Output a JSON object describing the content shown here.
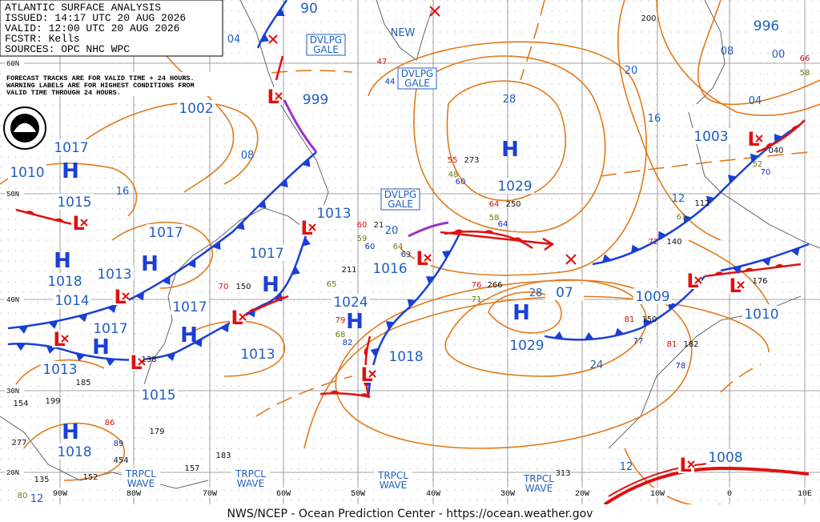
{
  "header": {
    "lines": [
      "ATLANTIC SURFACE ANALYSIS",
      "ISSUED: 14:17 UTC 20 AUG 2026",
      "VALID: 12:00 UTC 20 AUG 2026",
      "FCSTR: Kells",
      "SOURCES: OPC NHC WPC"
    ]
  },
  "note": {
    "lines": [
      "FORECAST TRACKS ARE FOR VALID TIME + 24 HOURS.",
      "WARNING LABELS ARE FOR HIGHEST CONDITIONS FROM",
      "VALID TIME THROUGH 24 HOURS."
    ]
  },
  "footer": "NWS/NCEP - Ocean Prediction Center - https://ocean.weather.gov",
  "pressure_labels": [
    "90",
    "996",
    "999",
    "1002",
    "1017",
    "1010",
    "1029",
    "1015",
    "1013",
    "1017",
    "1017",
    "1016",
    "1018",
    "1013",
    "1003",
    "1014",
    "1024",
    "1017",
    "1009",
    "1010",
    "1017",
    "1029",
    "1013",
    "1018",
    "1013",
    "1015",
    "1018",
    "1008",
    "07"
  ],
  "isobar_labels": [
    "04",
    "08",
    "00",
    "20",
    "28",
    "04",
    "16",
    "08",
    "16",
    "12",
    "20",
    "28",
    "24",
    "12",
    "12",
    "NEW"
  ],
  "highs": [
    "H",
    "H",
    "H",
    "H",
    "H",
    "H",
    "H",
    "H",
    "H",
    "H"
  ],
  "lows": [
    "L",
    "L",
    "L",
    "L",
    "L",
    "L",
    "L",
    "L",
    "L",
    "L",
    "L",
    "L",
    "L"
  ],
  "warnings": [
    [
      "DVLPG",
      "GALE"
    ],
    [
      "DVLPG",
      "GALE"
    ],
    [
      "DVLPG",
      "GALE"
    ],
    [
      "TRPCL",
      "WAVE"
    ],
    [
      "TRPCL",
      "WAVE"
    ],
    [
      "TRPCL",
      "WAVE"
    ],
    [
      "TRPCL",
      "WAVE"
    ]
  ],
  "lat_labels": [
    "60N",
    "50N",
    "40N",
    "30N",
    "20N"
  ],
  "lon_labels": [
    "90W",
    "80W",
    "70W",
    "60W",
    "50W",
    "40W",
    "30W",
    "20W",
    "10W",
    "0",
    "10E"
  ],
  "stations": [
    {
      "text": "200",
      "color": "#111"
    },
    {
      "text": "47",
      "color": "#d01010"
    },
    {
      "text": "44",
      "color": "#1030c0"
    },
    {
      "text": "55",
      "color": "#d01010"
    },
    {
      "text": "273",
      "color": "#111"
    },
    {
      "text": "48",
      "color": "#6a7a10"
    },
    {
      "text": "60",
      "color": "#1030c0"
    },
    {
      "text": "64",
      "color": "#d01010"
    },
    {
      "text": "250",
      "color": "#111"
    },
    {
      "text": "58",
      "color": "#6a7a10"
    },
    {
      "text": "64",
      "color": "#1030c0"
    },
    {
      "text": "60",
      "color": "#d01010"
    },
    {
      "text": "21",
      "color": "#111"
    },
    {
      "text": "59",
      "color": "#6a7a10"
    },
    {
      "text": "60",
      "color": "#1030c0"
    },
    {
      "text": "64",
      "color": "#6a7a10"
    },
    {
      "text": "63",
      "color": "#1030c0"
    },
    {
      "text": "211",
      "color": "#111"
    },
    {
      "text": "65",
      "color": "#6a7a10"
    },
    {
      "text": "76",
      "color": "#d01010"
    },
    {
      "text": "266",
      "color": "#111"
    },
    {
      "text": "71",
      "color": "#6a7a10"
    },
    {
      "text": "79",
      "color": "#d01010"
    },
    {
      "text": "68",
      "color": "#6a7a10"
    },
    {
      "text": "82",
      "color": "#1030c0"
    },
    {
      "text": "70",
      "color": "#d01010"
    },
    {
      "text": "150",
      "color": "#111"
    },
    {
      "text": "112",
      "color": "#111"
    },
    {
      "text": "61",
      "color": "#6a7a10"
    },
    {
      "text": "72",
      "color": "#d01010"
    },
    {
      "text": "140",
      "color": "#111"
    },
    {
      "text": "81",
      "color": "#d01010"
    },
    {
      "text": "150",
      "color": "#111"
    },
    {
      "text": "77",
      "color": "#1030c0"
    },
    {
      "text": "81",
      "color": "#d01010"
    },
    {
      "text": "182",
      "color": "#111"
    },
    {
      "text": "78",
      "color": "#1030c0"
    },
    {
      "text": "176",
      "color": "#111"
    },
    {
      "text": "040",
      "color": "#111"
    },
    {
      "text": "52",
      "color": "#6a7a10"
    },
    {
      "text": "70",
      "color": "#1030c0"
    },
    {
      "text": "66",
      "color": "#d01010"
    },
    {
      "text": "58",
      "color": "#6a7a10"
    },
    {
      "text": "185",
      "color": "#111"
    },
    {
      "text": "154",
      "color": "#111"
    },
    {
      "text": "199",
      "color": "#111"
    },
    {
      "text": "138",
      "color": "#111"
    },
    {
      "text": "86",
      "color": "#d01010"
    },
    {
      "text": "179",
      "color": "#111"
    },
    {
      "text": "183",
      "color": "#111"
    },
    {
      "text": "157",
      "color": "#111"
    },
    {
      "text": "454",
      "color": "#111"
    },
    {
      "text": "135",
      "color": "#111"
    },
    {
      "text": "152",
      "color": "#111"
    },
    {
      "text": "277",
      "color": "#111"
    },
    {
      "text": "313",
      "color": "#111"
    },
    {
      "text": "80",
      "color": "#6a7a10"
    },
    {
      "text": "89",
      "color": "#1030c0"
    }
  ]
}
